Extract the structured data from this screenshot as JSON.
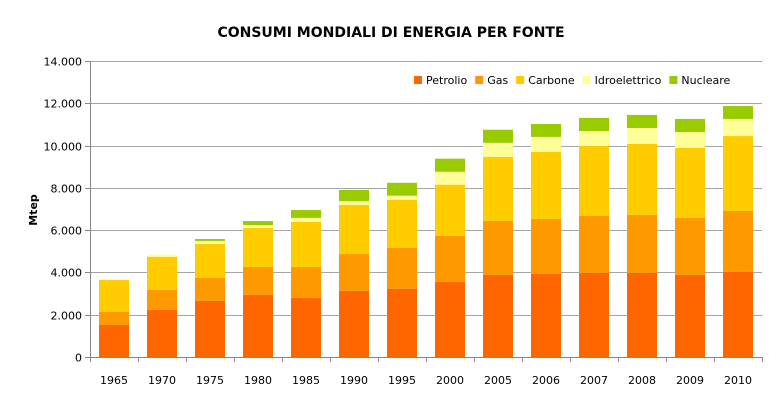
{
  "chart_data": {
    "type": "bar",
    "stacked": true,
    "title": "CONSUMI MONDIALI DI ENERGIA PER FONTE",
    "xlabel": "",
    "ylabel": "Mtep",
    "ylim": [
      0,
      14000
    ],
    "yticks": [
      0,
      2000,
      4000,
      6000,
      8000,
      10000,
      12000,
      14000
    ],
    "ytick_labels": [
      "0",
      "2.000",
      "4.000",
      "6.000",
      "8.000",
      "10.000",
      "12.000",
      "14.000"
    ],
    "grid": true,
    "legend_position": "top-right",
    "categories": [
      "1965",
      "1970",
      "1975",
      "1980",
      "1985",
      "1990",
      "1995",
      "2000",
      "2005",
      "2006",
      "2007",
      "2008",
      "2009",
      "2010"
    ],
    "series": [
      {
        "name": "Petrolio",
        "color": "#FF6600",
        "values": [
          1530,
          2230,
          2660,
          2940,
          2800,
          3130,
          3230,
          3560,
          3890,
          3940,
          3980,
          3980,
          3890,
          4030
        ]
      },
      {
        "name": "Gas",
        "color": "#FF9900",
        "values": [
          600,
          950,
          1080,
          1320,
          1460,
          1740,
          1940,
          2170,
          2550,
          2590,
          2690,
          2740,
          2690,
          2880
        ]
      },
      {
        "name": "Carbone",
        "color": "#FFCC00",
        "values": [
          1510,
          1560,
          1610,
          1840,
          2130,
          2320,
          2270,
          2420,
          3030,
          3170,
          3310,
          3360,
          3310,
          3540
        ]
      },
      {
        "name": "Idroelettrico",
        "color": "#FFFF99",
        "values": [
          40,
          100,
          140,
          140,
          190,
          190,
          190,
          610,
          660,
          710,
          710,
          750,
          750,
          810
        ]
      },
      {
        "name": "Nucleare",
        "color": "#99CC00",
        "values": [
          0,
          0,
          90,
          190,
          370,
          520,
          610,
          620,
          620,
          610,
          620,
          620,
          620,
          610
        ]
      }
    ]
  }
}
